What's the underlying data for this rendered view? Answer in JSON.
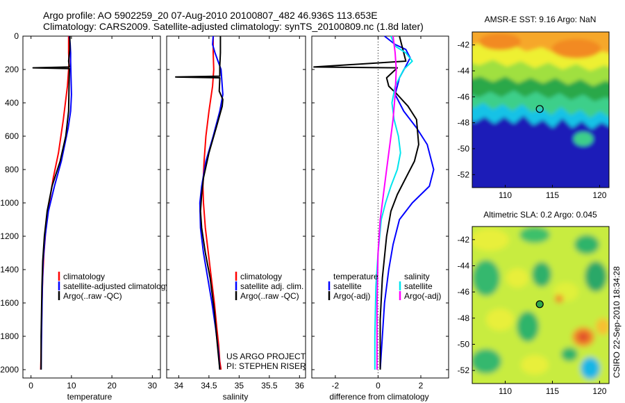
{
  "header": {
    "line1": "Argo profile: AO 5902259_20 07-Aug-2010 20100807_482 46.936S 113.653E",
    "line2": "Climatology: CARS2009. Satellite-adjusted climatology: synTS_20100809.nc (1.8d later)"
  },
  "side_stamp": "CSIRO 22-Sep-2010 18:34:28",
  "chart_data": [
    {
      "id": "temperature",
      "type": "line",
      "xlabel": "temperature",
      "xlim": [
        -2,
        32
      ],
      "ylim": [
        2050,
        0
      ],
      "xticks": [
        0,
        10,
        20,
        30
      ],
      "yticks": [
        0,
        200,
        400,
        600,
        800,
        1000,
        1200,
        1400,
        1600,
        1800,
        2000
      ],
      "legend_position": "lower-right",
      "colors": {
        "climatology": "#ff0000",
        "satellite": "#0000ff",
        "argo": "#000000"
      },
      "series": [
        {
          "name": "climatology",
          "color": "#ff0000",
          "x": [
            9.3,
            9.3,
            9.3,
            9.4,
            9.3,
            9.0,
            8.0,
            6.8,
            5.5,
            4.5,
            3.7,
            3.2,
            2.9,
            2.7,
            2.6,
            2.5,
            2.4
          ],
          "y": [
            0,
            50,
            100,
            150,
            200,
            300,
            500,
            700,
            850,
            1000,
            1150,
            1300,
            1450,
            1600,
            1750,
            1900,
            2000
          ]
        },
        {
          "name": "satellite-adjusted climatology",
          "color": "#0000ff",
          "x": [
            9.5,
            9.7,
            9.8,
            9.8,
            9.9,
            10.0,
            9.8,
            9.2,
            7.5,
            5.8,
            4.3,
            3.5,
            3.0,
            2.8,
            2.7,
            2.6,
            2.5
          ],
          "y": [
            0,
            50,
            100,
            150,
            250,
            350,
            450,
            550,
            750,
            900,
            1050,
            1200,
            1350,
            1500,
            1650,
            1800,
            2000
          ]
        },
        {
          "name": "Argo(..raw -QC)",
          "color": "#000000",
          "x": [
            9.6,
            9.6,
            9.3,
            9.5,
            0.5,
            9.5,
            9.4,
            9.3,
            8.6,
            7.2,
            5.2,
            4.0,
            3.3,
            2.9,
            2.7,
            2.6,
            2.5,
            2.5
          ],
          "y": [
            0,
            80,
            150,
            185,
            190,
            195,
            300,
            450,
            600,
            750,
            900,
            1050,
            1200,
            1350,
            1500,
            1650,
            1800,
            2000
          ]
        }
      ]
    },
    {
      "id": "salinity",
      "type": "line",
      "xlabel": "salinity",
      "xlim": [
        33.8,
        36.1
      ],
      "ylim": [
        2050,
        0
      ],
      "xticks": [
        34,
        34.5,
        35,
        35.5,
        36
      ],
      "yticks": [
        0,
        200,
        400,
        600,
        800,
        1000,
        1200,
        1400,
        1600,
        1800,
        2000
      ],
      "legend_position": "lower-right",
      "annotation": [
        "US ARGO PROJECT",
        "PI: STEPHEN RISER"
      ],
      "series": [
        {
          "name": "climatology",
          "color": "#ff0000",
          "x": [
            34.57,
            34.57,
            34.58,
            34.56,
            34.5,
            34.45,
            34.42,
            34.4,
            34.41,
            34.44,
            34.49,
            34.54,
            34.59,
            34.63,
            34.66,
            34.68,
            34.7
          ],
          "y": [
            0,
            100,
            200,
            300,
            450,
            600,
            750,
            900,
            1000,
            1150,
            1300,
            1450,
            1600,
            1750,
            1850,
            1950,
            2000
          ]
        },
        {
          "name": "satellite adj. clim.",
          "color": "#0000ff",
          "x": [
            34.57,
            34.56,
            34.6,
            34.7,
            34.73,
            34.68,
            34.57,
            34.45,
            34.38,
            34.35,
            34.36,
            34.41,
            34.48,
            34.55,
            34.61,
            34.66,
            34.68
          ],
          "y": [
            0,
            50,
            100,
            200,
            350,
            450,
            600,
            750,
            900,
            1000,
            1150,
            1300,
            1450,
            1600,
            1750,
            1900,
            2000
          ]
        },
        {
          "name": "Argo(..raw -QC)",
          "color": "#000000",
          "x": [
            34.69,
            34.69,
            34.68,
            34.68,
            33.95,
            34.68,
            34.67,
            34.73,
            34.72,
            34.62,
            34.5,
            34.41,
            34.38,
            34.36,
            34.38,
            34.44,
            34.52,
            34.59,
            34.64,
            34.68
          ],
          "y": [
            0,
            100,
            180,
            240,
            245,
            250,
            330,
            380,
            420,
            550,
            700,
            850,
            950,
            1050,
            1150,
            1300,
            1450,
            1650,
            1850,
            2000
          ]
        }
      ]
    },
    {
      "id": "difference",
      "type": "line",
      "xlabel": "difference from climatology",
      "xlim": [
        -3.1,
        3.3
      ],
      "ylim": [
        2050,
        0
      ],
      "xticks": [
        -2,
        0,
        2
      ],
      "yticks": [
        0,
        200,
        400,
        600,
        800,
        1000,
        1200,
        1400,
        1600,
        1800,
        2000
      ],
      "zero_line": true,
      "legend_position": "lower-center",
      "legend_groups": [
        "temperature",
        "salinity"
      ],
      "series": [
        {
          "name": "satellite",
          "group": "temperature",
          "color": "#0000ff",
          "x": [
            0.3,
            0.8,
            1.3,
            1.5,
            1.3,
            1.0,
            0.8,
            1.2,
            1.8,
            2.3,
            2.6,
            2.4,
            1.6,
            1.0,
            0.7,
            0.5,
            0.3,
            0.2,
            0.1
          ],
          "y": [
            0,
            50,
            80,
            130,
            180,
            250,
            350,
            450,
            550,
            650,
            800,
            900,
            1000,
            1100,
            1250,
            1400,
            1600,
            1800,
            2000
          ]
        },
        {
          "name": "Argo(-adj)",
          "group": "temperature",
          "color": "#000000",
          "x": [
            1.0,
            1.2,
            1.3,
            -3.0,
            0.9,
            0.4,
            0.5,
            0.9,
            1.4,
            1.8,
            1.9,
            1.7,
            1.3,
            0.9,
            0.6,
            0.4,
            0.2,
            0.1,
            0.1
          ],
          "y": [
            0,
            100,
            150,
            185,
            190,
            250,
            300,
            350,
            420,
            500,
            650,
            750,
            850,
            950,
            1050,
            1200,
            1450,
            1700,
            2000
          ]
        },
        {
          "name": "satellite",
          "group": "salinity",
          "color": "#00e5ee",
          "x": [
            0.6,
            0.8,
            1.3,
            1.6,
            1.2,
            0.8,
            0.65,
            0.75,
            0.95,
            1.05,
            0.9,
            0.6,
            0.35,
            0.15,
            0.0,
            -0.1,
            -0.15,
            -0.15
          ],
          "y": [
            0,
            60,
            100,
            150,
            200,
            300,
            400,
            500,
            600,
            700,
            800,
            900,
            1000,
            1100,
            1300,
            1500,
            1800,
            2000
          ]
        },
        {
          "name": "Argo(-adj)",
          "group": "salinity",
          "color": "#ff00ff",
          "x": [
            0.7,
            0.8,
            0.85,
            0.8,
            0.7,
            0.55,
            0.4,
            0.25,
            0.1,
            0.0,
            -0.05,
            -0.05
          ],
          "y": [
            0,
            100,
            200,
            350,
            500,
            650,
            800,
            950,
            1100,
            1300,
            1600,
            2000
          ]
        }
      ]
    },
    {
      "id": "sst_map",
      "type": "heatmap",
      "title": "AMSR-E SST: 9.16 Argo: NaN",
      "xlim": [
        106.5,
        121
      ],
      "ylim": [
        -53,
        -41
      ],
      "xticks": [
        110,
        115,
        120
      ],
      "yticks": [
        -42,
        -44,
        -46,
        -48,
        -50,
        -52
      ],
      "marker": {
        "lon": 113.653,
        "lat": -46.936
      }
    },
    {
      "id": "sla_map",
      "type": "heatmap",
      "title": "Altimetric SLA: 0.2 Argo: 0.045",
      "xlim": [
        106.5,
        121
      ],
      "ylim": [
        -53,
        -41
      ],
      "xticks": [
        110,
        115,
        120
      ],
      "yticks": [
        -42,
        -44,
        -46,
        -48,
        -50,
        -52
      ],
      "marker": {
        "lon": 113.653,
        "lat": -46.936
      }
    }
  ]
}
